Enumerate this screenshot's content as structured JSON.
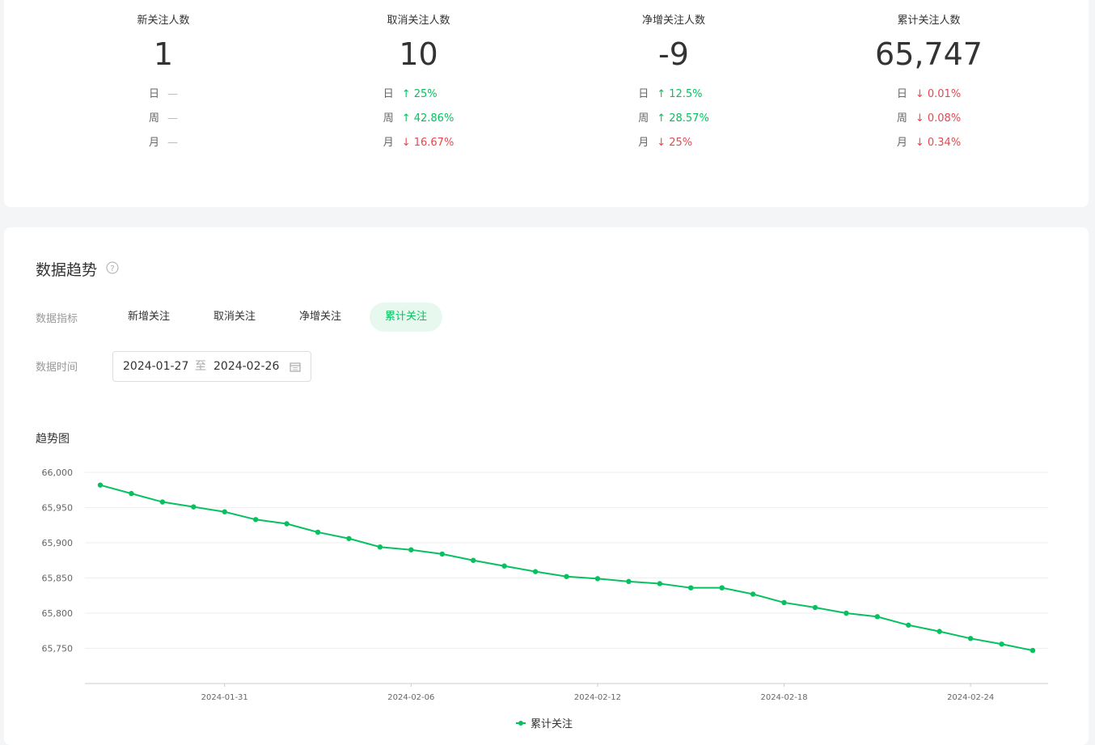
{
  "stats": [
    {
      "label": "新关注人数",
      "value": "1",
      "rows": [
        {
          "period": "日",
          "change": "—",
          "trend": "none"
        },
        {
          "period": "周",
          "change": "—",
          "trend": "none"
        },
        {
          "period": "月",
          "change": "—",
          "trend": "none"
        }
      ]
    },
    {
      "label": "取消关注人数",
      "value": "10",
      "rows": [
        {
          "period": "日",
          "change": "↑ 25%",
          "trend": "up"
        },
        {
          "period": "周",
          "change": "↑ 42.86%",
          "trend": "up"
        },
        {
          "period": "月",
          "change": "↓ 16.67%",
          "trend": "down"
        }
      ]
    },
    {
      "label": "净增关注人数",
      "value": "-9",
      "rows": [
        {
          "period": "日",
          "change": "↑ 12.5%",
          "trend": "up"
        },
        {
          "period": "周",
          "change": "↑ 28.57%",
          "trend": "up"
        },
        {
          "period": "月",
          "change": "↓ 25%",
          "trend": "down"
        }
      ]
    },
    {
      "label": "累计关注人数",
      "value": "65,747",
      "rows": [
        {
          "period": "日",
          "change": "↓ 0.01%",
          "trend": "down"
        },
        {
          "period": "周",
          "change": "↓ 0.08%",
          "trend": "down"
        },
        {
          "period": "月",
          "change": "↓ 0.34%",
          "trend": "down"
        }
      ]
    }
  ],
  "section": {
    "title": "数据趋势",
    "metric_label": "数据指标",
    "metrics": [
      "新增关注",
      "取消关注",
      "净增关注",
      "累计关注"
    ],
    "active_metric": 3,
    "time_label": "数据时间",
    "start_date": "2024-01-27",
    "separator": "至",
    "end_date": "2024-02-26",
    "chart_heading": "趋势图"
  },
  "chart_data": {
    "type": "line",
    "x": [
      "2024-01-27",
      "2024-01-28",
      "2024-01-29",
      "2024-01-30",
      "2024-01-31",
      "2024-02-01",
      "2024-02-02",
      "2024-02-03",
      "2024-02-04",
      "2024-02-05",
      "2024-02-06",
      "2024-02-07",
      "2024-02-08",
      "2024-02-09",
      "2024-02-10",
      "2024-02-11",
      "2024-02-12",
      "2024-02-13",
      "2024-02-14",
      "2024-02-15",
      "2024-02-16",
      "2024-02-17",
      "2024-02-18",
      "2024-02-19",
      "2024-02-20",
      "2024-02-21",
      "2024-02-22",
      "2024-02-23",
      "2024-02-24",
      "2024-02-25",
      "2024-02-26"
    ],
    "series": [
      {
        "name": "累计关注",
        "color": "#07c160",
        "values": [
          65982,
          65970,
          65958,
          65951,
          65944,
          65933,
          65927,
          65915,
          65906,
          65894,
          65890,
          65884,
          65875,
          65867,
          65859,
          65852,
          65849,
          65845,
          65842,
          65836,
          65836,
          65827,
          65815,
          65808,
          65800,
          65795,
          65783,
          65774,
          65764,
          65756,
          65747
        ]
      }
    ],
    "xticks": [
      "2024-01-31",
      "2024-02-06",
      "2024-02-12",
      "2024-02-18",
      "2024-02-24"
    ],
    "ylim": [
      65700,
      66000
    ],
    "yticks": [
      {
        "value": 65750,
        "label": "65,750"
      },
      {
        "value": 65800,
        "label": "65,800"
      },
      {
        "value": 65850,
        "label": "65,850"
      },
      {
        "value": 65900,
        "label": "65,900"
      },
      {
        "value": 65950,
        "label": "65,950"
      },
      {
        "value": 66000,
        "label": "66,000"
      }
    ],
    "grid": true,
    "legend": "bottom"
  }
}
